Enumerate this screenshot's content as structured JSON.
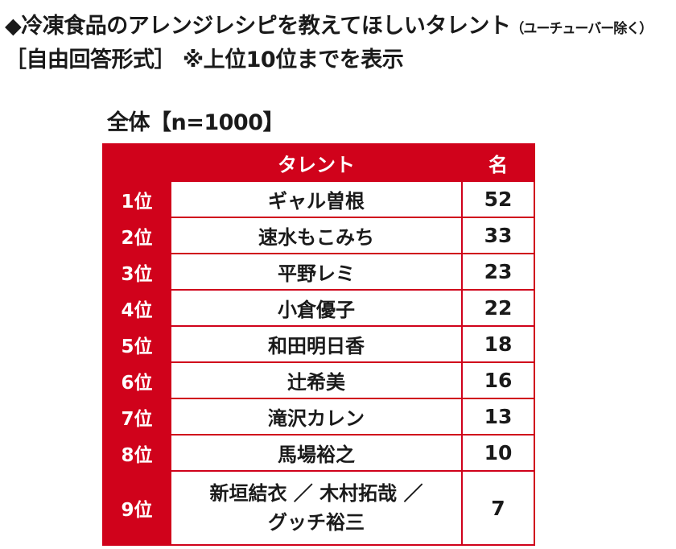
{
  "title_line1": "◆冷凍食品のアレンジレシピを教えてほしいタレント",
  "title_line1_note": "（ユーチューバー除く）",
  "title_line2": "［自由回答形式］ ※上位10位までを表示",
  "subtitle": "全体【n=1000】",
  "chart_data": {
    "type": "table",
    "columns": [
      "",
      "タレント",
      "名"
    ],
    "rows": [
      {
        "rank": "1位",
        "talent": "ギャル曽根",
        "value": 52
      },
      {
        "rank": "2位",
        "talent": "速水もこみち",
        "value": 33
      },
      {
        "rank": "3位",
        "talent": "平野レミ",
        "value": 23
      },
      {
        "rank": "4位",
        "talent": "小倉優子",
        "value": 22
      },
      {
        "rank": "5位",
        "talent": "和田明日香",
        "value": 18
      },
      {
        "rank": "6位",
        "talent": "辻希美",
        "value": 16
      },
      {
        "rank": "7位",
        "talent": "滝沢カレン",
        "value": 13
      },
      {
        "rank": "8位",
        "talent": "馬場裕之",
        "value": 10
      },
      {
        "rank": "9位",
        "talent_lines": [
          "新垣結衣 ／ 木村拓哉 ／",
          "グッチ裕三"
        ],
        "value": 7
      }
    ]
  },
  "colors": {
    "header_bg": "#d0021b",
    "header_text": "#ffffff",
    "border": "#d0021b"
  }
}
